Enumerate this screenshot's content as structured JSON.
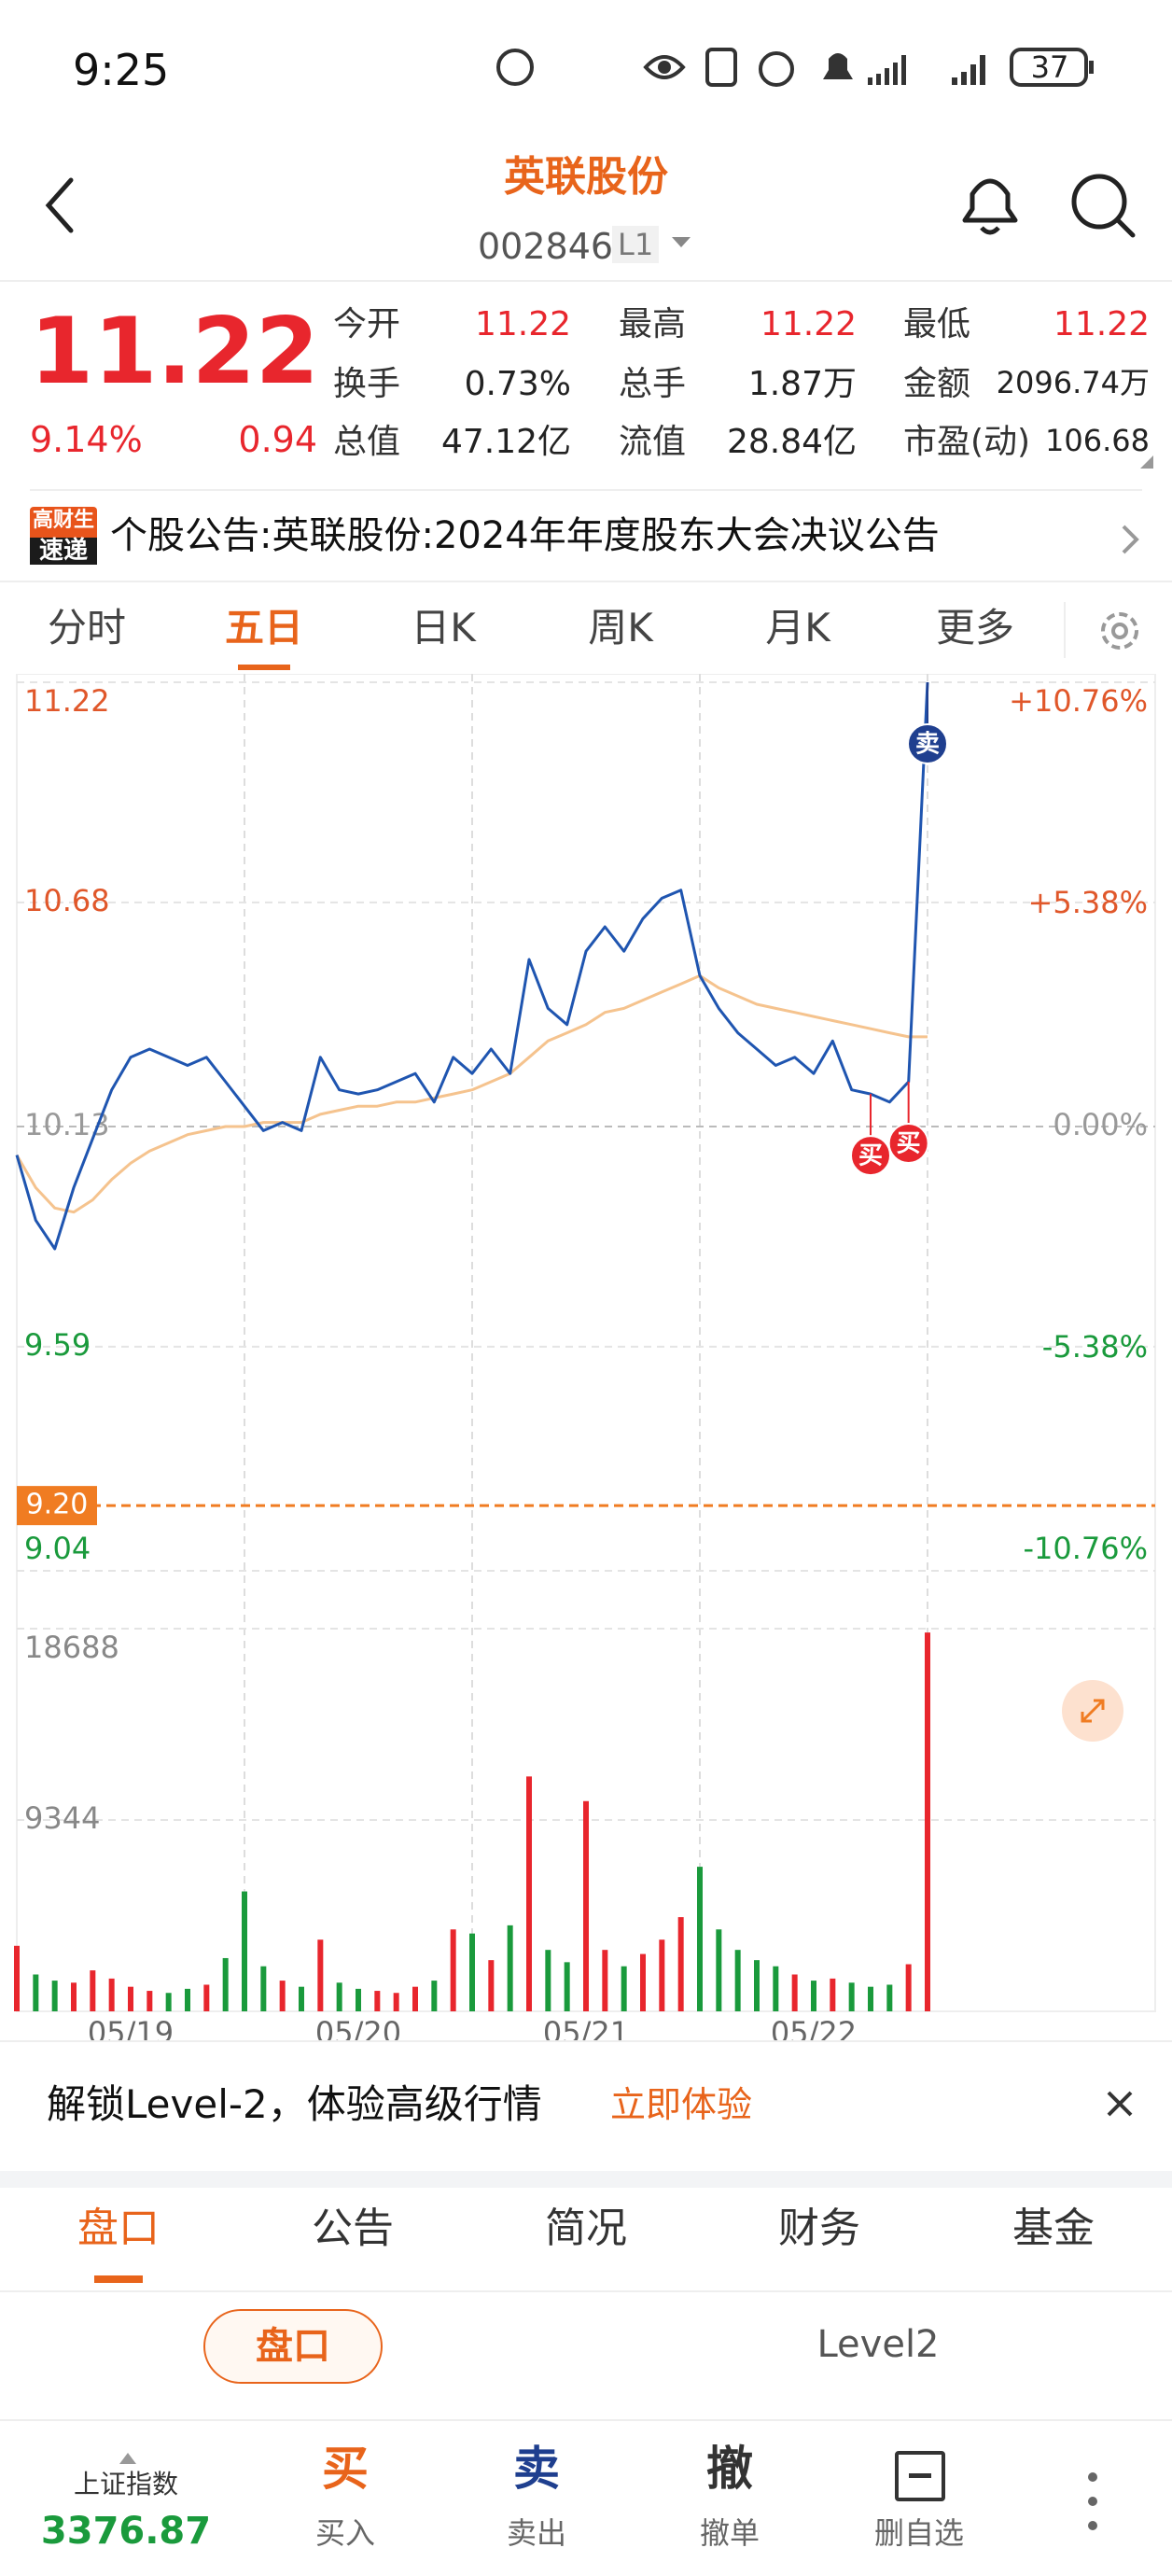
{
  "status_bar": {
    "time": "9:25",
    "battery": "37"
  },
  "header": {
    "title": "英联股份",
    "code": "002846",
    "level": "L1"
  },
  "quote": {
    "price": "11.22",
    "change_pct": "9.14%",
    "change": "0.94",
    "stats": [
      {
        "label": "今开",
        "value": "11.22"
      },
      {
        "label": "最高",
        "value": "11.22"
      },
      {
        "label": "最低",
        "value": "11.22"
      },
      {
        "label": "换手",
        "value": "0.73%"
      },
      {
        "label": "总手",
        "value": "1.87万"
      },
      {
        "label": "金额",
        "value": "2096.74万"
      },
      {
        "label": "总值",
        "value": "47.12亿"
      },
      {
        "label": "流值",
        "value": "28.84亿"
      },
      {
        "label": "市盈(动)",
        "value": "106.68"
      }
    ]
  },
  "notice": {
    "badge_top": "高财生",
    "badge_bottom": "速递",
    "text": "个股公告:英联股份:2024年年度股东大会决议公告"
  },
  "chart_tabs": {
    "items": [
      "分时",
      "五日",
      "日K",
      "周K",
      "月K",
      "更多"
    ],
    "active": 1
  },
  "chart_data": {
    "type": "line",
    "x": [
      0,
      1,
      2,
      3,
      4,
      5,
      6,
      7,
      8,
      9,
      10,
      11,
      12,
      13,
      14,
      15,
      16,
      17,
      18,
      19,
      20,
      21,
      22,
      23,
      24,
      25,
      26,
      27,
      28,
      29,
      30,
      31,
      32,
      33,
      34,
      35,
      36,
      37,
      38,
      39,
      40,
      41,
      42,
      43,
      44,
      45,
      46,
      47,
      48
    ],
    "series": [
      {
        "color": "#1f55b0",
        "values": [
          10.06,
          9.9,
          9.83,
          9.98,
          10.1,
          10.22,
          10.3,
          10.32,
          10.3,
          10.28,
          10.3,
          10.24,
          10.18,
          10.12,
          10.14,
          10.12,
          10.3,
          10.22,
          10.21,
          10.22,
          10.24,
          10.26,
          10.19,
          10.3,
          10.26,
          10.32,
          10.26,
          10.54,
          10.42,
          10.38,
          10.56,
          10.62,
          10.56,
          10.64,
          10.69,
          10.71,
          10.5,
          10.42,
          10.36,
          10.32,
          10.28,
          10.3,
          10.26,
          10.34,
          10.22,
          10.21,
          10.19,
          10.24,
          11.22
        ]
      },
      {
        "color": "#f5c38e",
        "values": [
          10.06,
          9.98,
          9.93,
          9.92,
          9.95,
          10.0,
          10.04,
          10.07,
          10.09,
          10.11,
          10.12,
          10.13,
          10.13,
          10.14,
          10.14,
          10.14,
          10.16,
          10.17,
          10.18,
          10.18,
          10.19,
          10.19,
          10.2,
          10.21,
          10.22,
          10.24,
          10.26,
          10.3,
          10.34,
          10.36,
          10.38,
          10.41,
          10.42,
          10.44,
          10.46,
          10.48,
          10.5,
          10.47,
          10.45,
          10.43,
          10.42,
          10.41,
          10.4,
          10.39,
          10.38,
          10.37,
          10.36,
          10.35,
          10.35
        ]
      }
    ],
    "xlim": [
      0,
      60
    ],
    "xticks": [
      {
        "value": 6,
        "label": "05/19"
      },
      {
        "value": 18,
        "label": "05/20"
      },
      {
        "value": 30,
        "label": "05/21"
      },
      {
        "value": 42,
        "label": "05/22"
      }
    ],
    "xgrid": [
      12,
      24,
      36,
      48
    ],
    "ylim": [
      9.04,
      11.22
    ],
    "yticks": [
      9.04,
      9.59,
      10.13,
      10.68,
      11.22
    ],
    "y2lim": [
      -10.76,
      10.76
    ],
    "y2ticks": [
      {
        "value": -10.76,
        "label": "-10.76%"
      },
      {
        "value": -5.38,
        "label": "-5.38%"
      },
      {
        "value": 0,
        "label": "0.00%"
      },
      {
        "value": 5.38,
        "label": "+5.38%"
      },
      {
        "value": 10.76,
        "label": "+10.76%"
      }
    ],
    "up_color": "#e8262d",
    "down_color": "#1a9a3c",
    "ref_color": "#f07c22",
    "ref_line": {
      "value": 9.2,
      "label": "9.20"
    },
    "annotations": [
      {
        "label": "卖",
        "x": 48,
        "value": 11.22,
        "color": "#1f3f8f"
      },
      {
        "label": "买",
        "x": 45,
        "value": 10.21,
        "color": "#e8262d"
      },
      {
        "label": "买",
        "x": 47,
        "value": 10.24,
        "color": "#e8262d"
      }
    ],
    "volume": {
      "values": [
        3200,
        1800,
        1500,
        1400,
        2000,
        1600,
        1200,
        1000,
        900,
        1100,
        1300,
        2600,
        5855,
        2200,
        1500,
        1200,
        3500,
        1400,
        1100,
        1000,
        900,
        1200,
        1500,
        4000,
        3800,
        2500,
        4200,
        11470,
        3000,
        2400,
        10266,
        3000,
        2200,
        2800,
        3500,
        4600,
        7060,
        4000,
        3000,
        2500,
        2200,
        1800,
        1500,
        1600,
        1400,
        1200,
        1300,
        2300,
        18500
      ],
      "ylim": [
        0,
        18688
      ],
      "yticks": [
        9344,
        18688
      ]
    }
  },
  "level2_banner": {
    "text": "解锁Level-2，体验高级行情",
    "action": "立即体验"
  },
  "bottom_tabs": {
    "items": [
      "盘口",
      "公告",
      "简况",
      "财务",
      "基金"
    ],
    "active": 0
  },
  "sub_tabs": {
    "items": [
      "盘口",
      "Level2"
    ],
    "active": 0
  },
  "nav": {
    "index_name": "上证指数",
    "index_value": "3376.87",
    "items": [
      {
        "icon": "买",
        "label": "买入"
      },
      {
        "icon": "卖",
        "label": "卖出"
      },
      {
        "icon": "撤",
        "label": "撤单"
      },
      {
        "label": "删自选"
      }
    ]
  }
}
